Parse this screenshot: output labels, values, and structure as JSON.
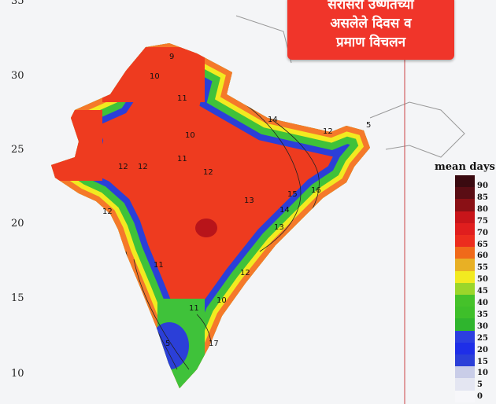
{
  "banner": {
    "line1": "सरासरी उष्णतेच्या",
    "line2": "असलेले दिवस व",
    "line3": "प्रमाण विचलन"
  },
  "y_axis": [
    "35",
    "30",
    "25",
    "20",
    "15",
    "10"
  ],
  "legend": {
    "title": "mean days",
    "ticks": [
      "90",
      "85",
      "80",
      "75",
      "70",
      "65",
      "60",
      "55",
      "50",
      "45",
      "40",
      "35",
      "30",
      "25",
      "20",
      "15",
      "10",
      "5",
      "0"
    ],
    "colors": [
      "#3a0a10",
      "#5a0d14",
      "#8a1015",
      "#c8151a",
      "#e01e1e",
      "#ec2d1e",
      "#f06a1a",
      "#e8b025",
      "#f2ea20",
      "#9bd62a",
      "#45c22a",
      "#3ebf2a",
      "#2fb52e",
      "#2c3fe0",
      "#1e2ee8",
      "#2b3fd8",
      "#c9cde8",
      "#e4e6f2",
      "#f7f7fa"
    ]
  },
  "map_colors": {
    "core": "#ee3b1f",
    "orange": "#f5792a",
    "green": "#3fc23a",
    "blue": "#2b3fd8"
  },
  "contour_labels": [
    "9",
    "10",
    "11",
    "14",
    "5",
    "12",
    "10",
    "11",
    "12",
    "13",
    "15",
    "16",
    "14",
    "13",
    "12",
    "11",
    "12",
    "10",
    "17",
    "5",
    "12",
    "11",
    "12"
  ]
}
